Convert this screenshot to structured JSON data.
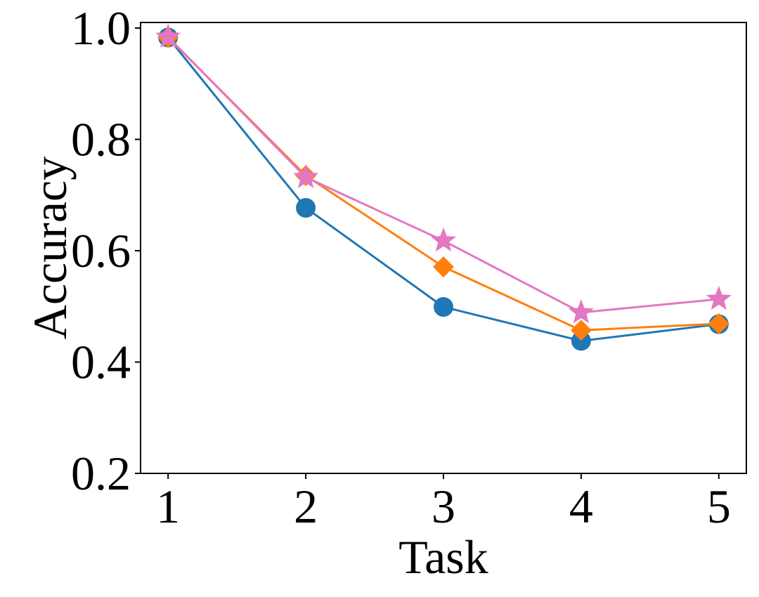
{
  "chart_data": {
    "type": "line",
    "xlabel": "Task",
    "ylabel": "Accuracy",
    "x": [
      1,
      2,
      3,
      4,
      5
    ],
    "xticks": [
      "1",
      "2",
      "3",
      "4",
      "5"
    ],
    "yticks": [
      "0.2",
      "0.4",
      "0.6",
      "0.8",
      "1.0"
    ],
    "xlim": [
      0.8,
      5.2
    ],
    "ylim": [
      0.2,
      1.01
    ],
    "grid": false,
    "series": [
      {
        "color": "#1f77b4",
        "marker": "circle",
        "values": [
          0.983,
          0.677,
          0.499,
          0.438,
          0.468
        ]
      },
      {
        "color": "#ff7f0e",
        "marker": "diamond",
        "values": [
          0.983,
          0.735,
          0.571,
          0.457,
          0.469
        ]
      },
      {
        "color": "#e377c2",
        "marker": "star",
        "values": [
          0.984,
          0.732,
          0.618,
          0.489,
          0.513
        ]
      }
    ]
  }
}
